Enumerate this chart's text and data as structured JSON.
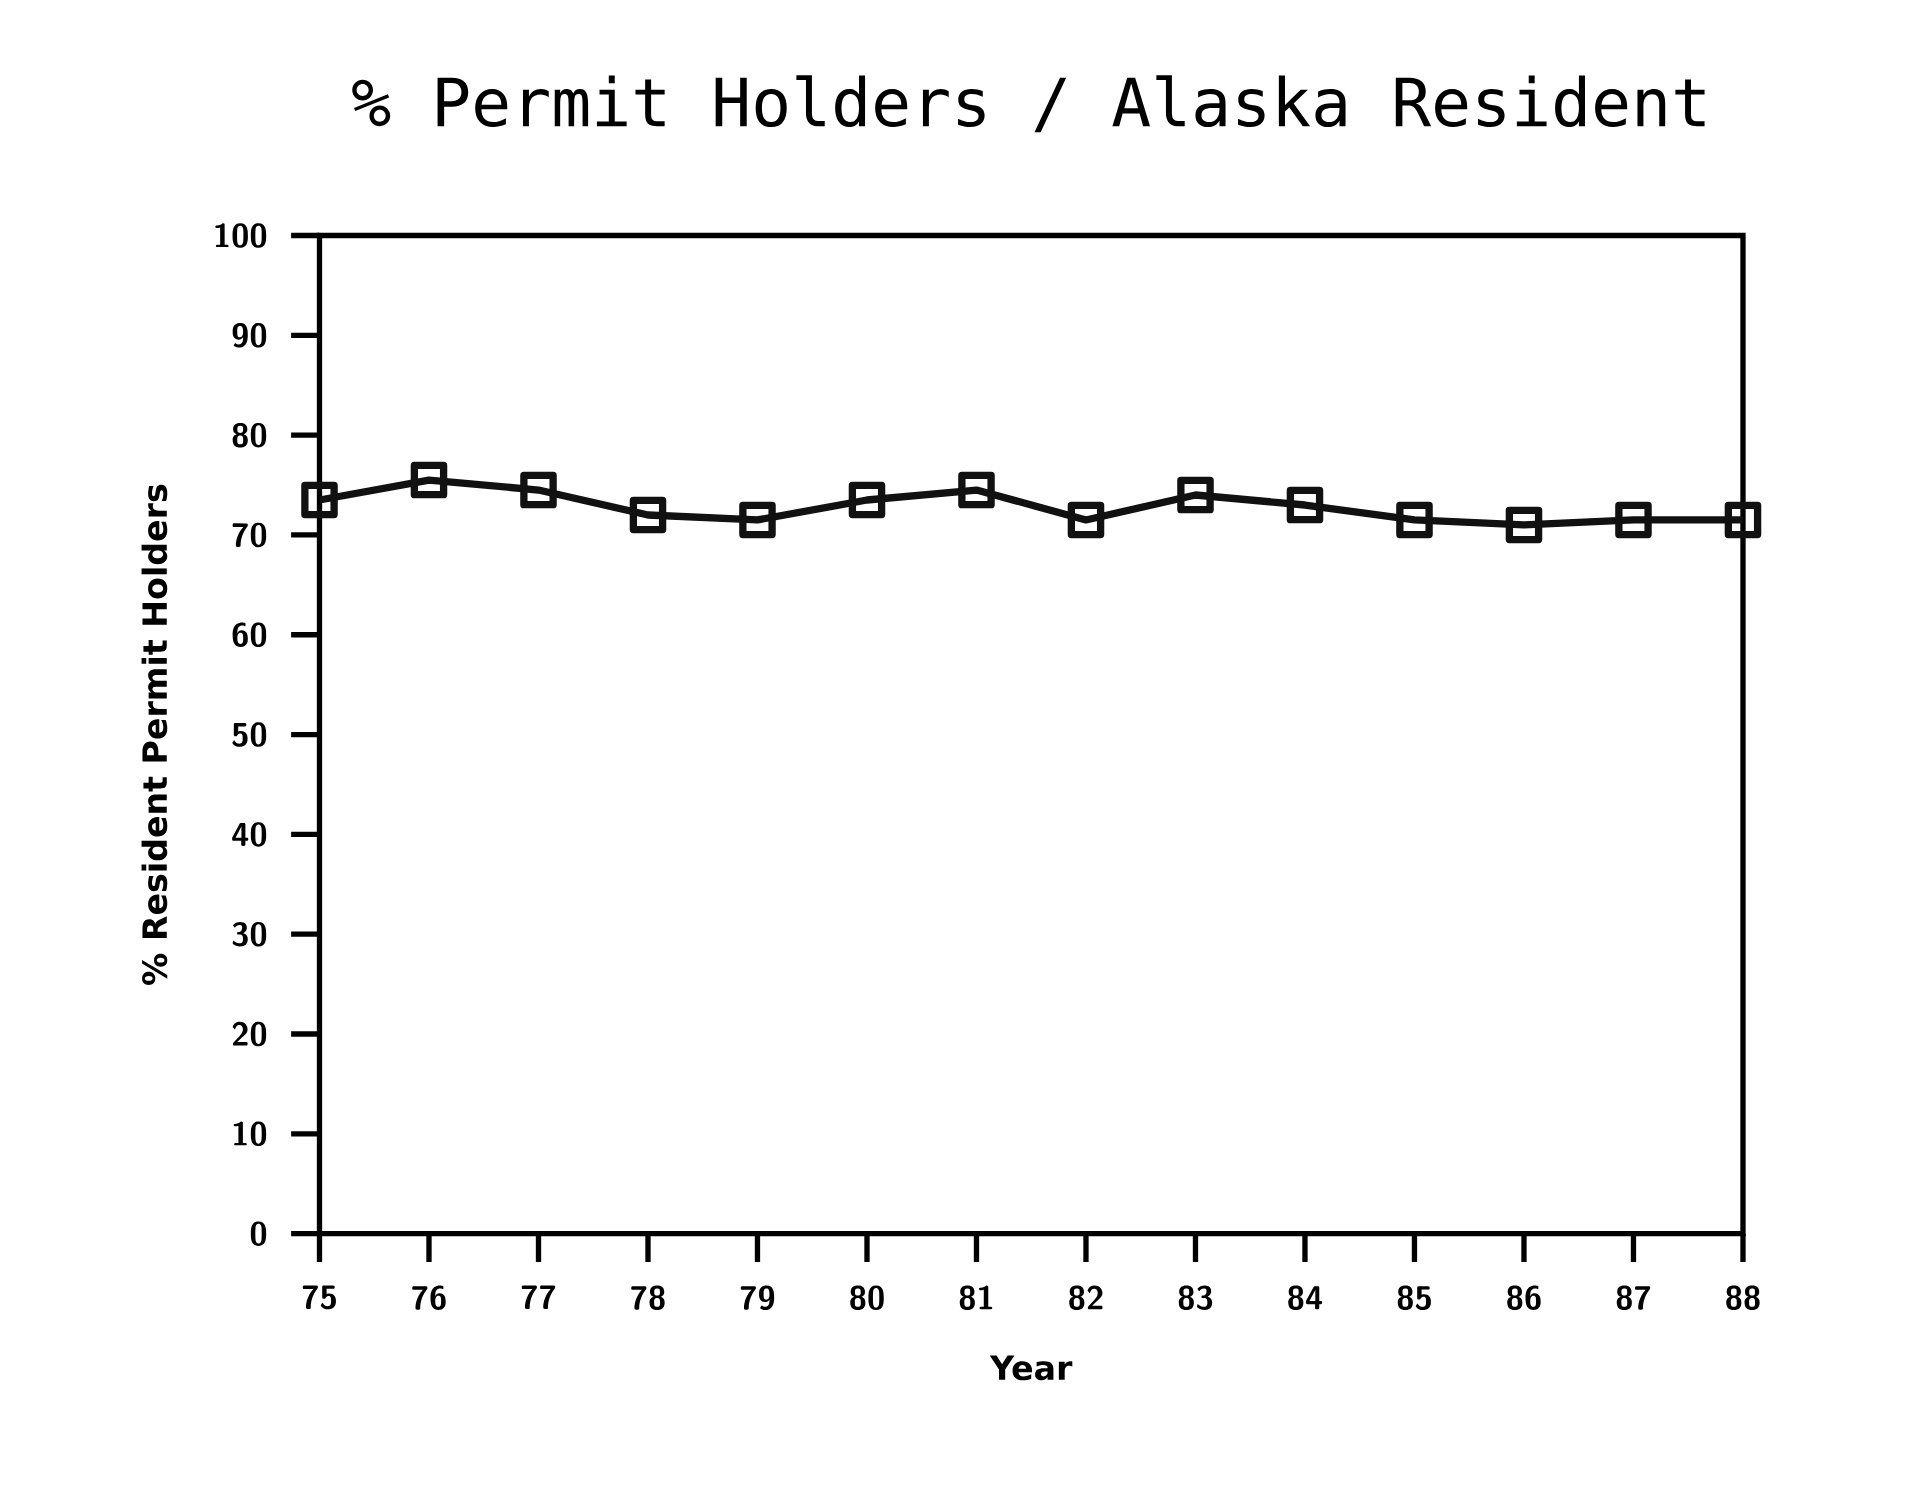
{
  "chart_data": {
    "type": "line",
    "title": "% Permit Holders / Alaska Resident",
    "xlabel": "Year",
    "ylabel": "% Resident Permit Holders",
    "categories": [
      "75",
      "76",
      "77",
      "78",
      "79",
      "80",
      "81",
      "82",
      "83",
      "84",
      "85",
      "86",
      "87",
      "88"
    ],
    "values": [
      73.5,
      75.5,
      74.5,
      72,
      71.5,
      73.5,
      74.5,
      71.5,
      74,
      73,
      71.5,
      71,
      71.5,
      71.5
    ],
    "color": "#111111",
    "marker": "square",
    "line_style": "solid",
    "ylim": [
      0,
      100
    ],
    "yticks": [
      0,
      10,
      20,
      30,
      40,
      50,
      60,
      70,
      80,
      90,
      100
    ]
  }
}
